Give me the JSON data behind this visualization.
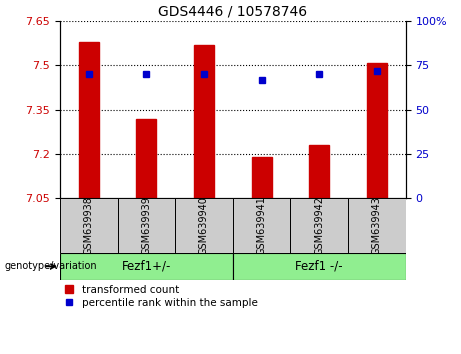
{
  "title": "GDS4446 / 10578746",
  "samples": [
    "GSM639938",
    "GSM639939",
    "GSM639940",
    "GSM639941",
    "GSM639942",
    "GSM639943"
  ],
  "bar_values": [
    7.58,
    7.32,
    7.57,
    7.19,
    7.23,
    7.51
  ],
  "percentile_values": [
    70,
    70,
    70,
    67,
    70,
    72
  ],
  "ylim_left": [
    7.05,
    7.65
  ],
  "yticks_left": [
    7.05,
    7.2,
    7.35,
    7.5,
    7.65
  ],
  "ylim_right": [
    0,
    100
  ],
  "yticks_right": [
    0,
    25,
    50,
    75,
    100
  ],
  "bar_color": "#cc0000",
  "dot_color": "#0000cc",
  "bar_bottom": 7.05,
  "group1_label": "Fezf1+/-",
  "group2_label": "Fezf1 -/-",
  "group1_indices": [
    0,
    1,
    2
  ],
  "group2_indices": [
    3,
    4,
    5
  ],
  "genotype_label": "genotype/variation",
  "legend_bar_label": "transformed count",
  "legend_dot_label": "percentile rank within the sample",
  "tick_label_color_left": "#cc0000",
  "tick_label_color_right": "#0000cc",
  "plot_bg_color": "#ffffff",
  "xticklabel_bg": "#cccccc",
  "green_color": "#90ee90",
  "bar_width": 0.35,
  "title_fontsize": 10,
  "tick_fontsize": 8,
  "label_fontsize": 7,
  "legend_fontsize": 7.5
}
